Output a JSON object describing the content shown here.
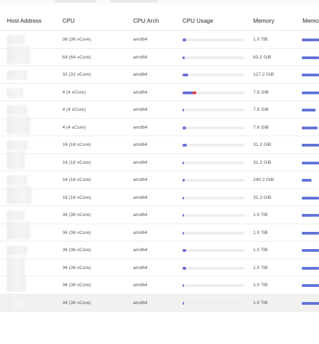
{
  "table": {
    "headers": {
      "host": "Host Address",
      "cpu": "CPU",
      "arch": "CPU Arch",
      "usage": "CPU Usage",
      "memory": "Memory",
      "memory_usage": "Memo"
    },
    "rows": [
      {
        "cpu": "36 (36 vCore)",
        "arch": "amd64",
        "cpu_usage": 0.05,
        "cpu_hot": 0,
        "memory": "1.0 TiB",
        "memory_usage": 1.0
      },
      {
        "cpu": "64 (64 vCore)",
        "arch": "amd64",
        "cpu_usage": 0.03,
        "cpu_hot": 0,
        "memory": "63.2 GiB",
        "memory_usage": 1.0
      },
      {
        "cpu": "32 (32 vCore)",
        "arch": "amd64",
        "cpu_usage": 0.09,
        "cpu_hot": 0,
        "memory": "127.2 GiB",
        "memory_usage": 1.0
      },
      {
        "cpu": "4 (4 vCore)",
        "arch": "amd64",
        "cpu_usage": 0.17,
        "cpu_hot": 0.05,
        "memory": "7.6 GiB",
        "memory_usage": 1.0
      },
      {
        "cpu": "4 (4 vCore)",
        "arch": "amd64",
        "cpu_usage": 0.01,
        "cpu_hot": 0,
        "memory": "7.6 GiB",
        "memory_usage": 0.8
      },
      {
        "cpu": "4 (4 vCore)",
        "arch": "amd64",
        "cpu_usage": 0.06,
        "cpu_hot": 0,
        "memory": "7.6 GiB",
        "memory_usage": 0.9
      },
      {
        "cpu": "16 (16 vCore)",
        "arch": "amd64",
        "cpu_usage": 0.07,
        "cpu_hot": 0,
        "memory": "31.2 GiB",
        "memory_usage": 1.0
      },
      {
        "cpu": "16 (16 vCore)",
        "arch": "amd64",
        "cpu_usage": 0.02,
        "cpu_hot": 0,
        "memory": "31.2 GiB",
        "memory_usage": 1.0
      },
      {
        "cpu": "16 (16 vCore)",
        "arch": "amd64",
        "cpu_usage": 0.03,
        "cpu_hot": 0,
        "memory": "240.2 GiB",
        "memory_usage": 0.55
      },
      {
        "cpu": "16 (16 vCore)",
        "arch": "amd64",
        "cpu_usage": 0.01,
        "cpu_hot": 0,
        "memory": "31.2 GiB",
        "memory_usage": 1.0
      },
      {
        "cpu": "36 (36 vCore)",
        "arch": "amd64",
        "cpu_usage": 0.02,
        "cpu_hot": 0,
        "memory": "1.0 TiB",
        "memory_usage": 1.0
      },
      {
        "cpu": "36 (36 vCore)",
        "arch": "amd64",
        "cpu_usage": 0.01,
        "cpu_hot": 0,
        "memory": "1.0 TiB",
        "memory_usage": 1.0
      },
      {
        "cpu": "36 (36 vCore)",
        "arch": "amd64",
        "cpu_usage": 0.06,
        "cpu_hot": 0,
        "memory": "1.0 TiB",
        "memory_usage": 1.0
      },
      {
        "cpu": "36 (36 vCore)",
        "arch": "amd64",
        "cpu_usage": 0.05,
        "cpu_hot": 0,
        "memory": "1.0 TiB",
        "memory_usage": 1.0
      },
      {
        "cpu": "36 (36 vCore)",
        "arch": "amd64",
        "cpu_usage": 0.02,
        "cpu_hot": 0,
        "memory": "1.0 TiB",
        "memory_usage": 1.0
      },
      {
        "cpu": "36 (36 vCore)",
        "arch": "amd64",
        "cpu_usage": 0.02,
        "cpu_hot": 0,
        "memory": "1.0 TiB",
        "memory_usage": 1.0
      }
    ],
    "highlighted_row": 15
  },
  "colors": {
    "usage_bar": "#6a6ed6",
    "usage_bar_hot": "#e24a4a",
    "memory_bar": "#6273d9",
    "track": "#eeeef0"
  }
}
